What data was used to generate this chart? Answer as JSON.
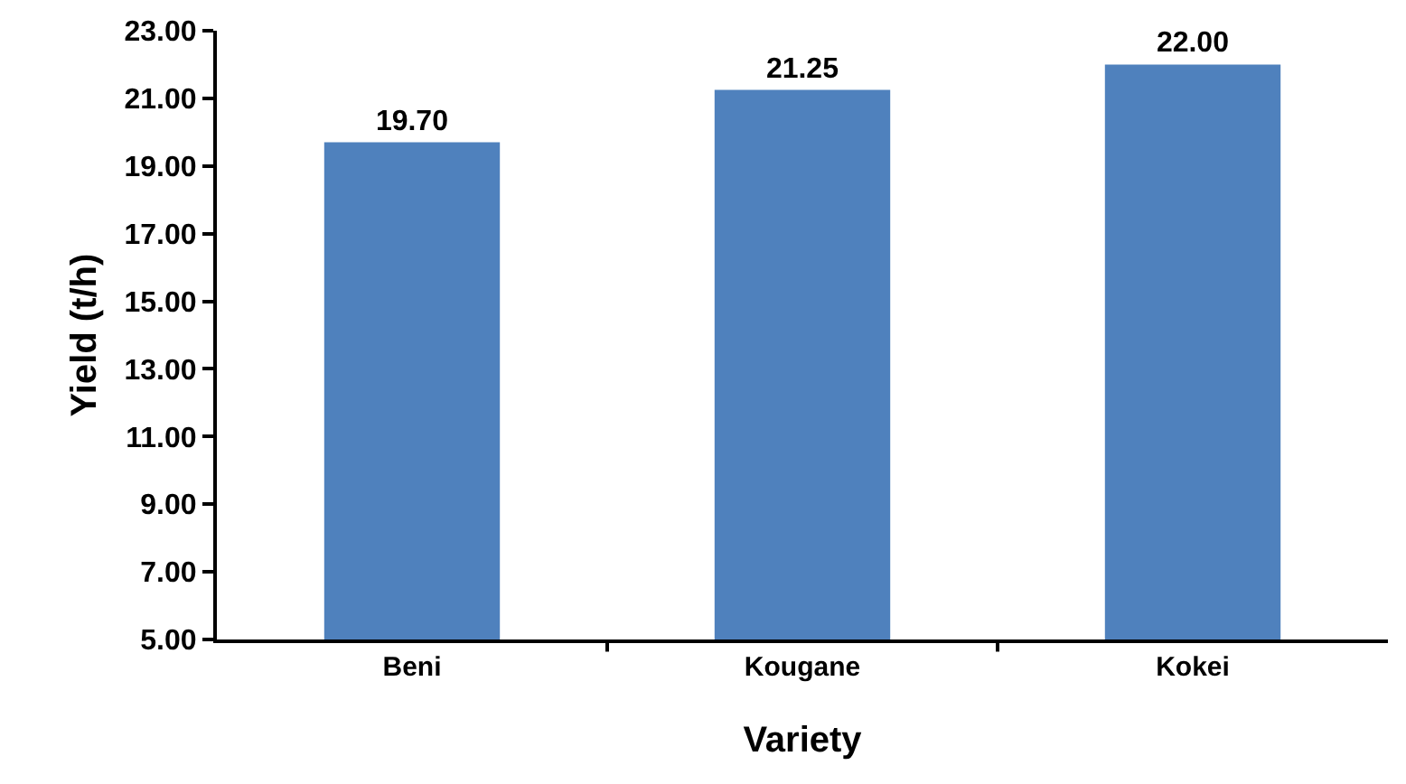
{
  "chart_data": {
    "type": "bar",
    "xlabel": "Variety",
    "ylabel": "Yield (t/h)",
    "categories": [
      "Beni",
      "Kougane",
      "Kokei"
    ],
    "values": [
      19.7,
      21.25,
      22.0
    ],
    "value_labels": [
      "19.70",
      "21.25",
      "22.00"
    ],
    "color": "#4f81bd",
    "ylim": [
      5,
      23
    ],
    "yticks": [
      {
        "value": 5,
        "label": "5.00"
      },
      {
        "value": 7,
        "label": "7.00"
      },
      {
        "value": 9,
        "label": "9.00"
      },
      {
        "value": 11,
        "label": "11.00"
      },
      {
        "value": 13,
        "label": "13.00"
      },
      {
        "value": 15,
        "label": "15.00"
      },
      {
        "value": 17,
        "label": "17.00"
      },
      {
        "value": 19,
        "label": "19.00"
      },
      {
        "value": 21,
        "label": "21.00"
      },
      {
        "value": 23,
        "label": "23.00"
      }
    ]
  }
}
